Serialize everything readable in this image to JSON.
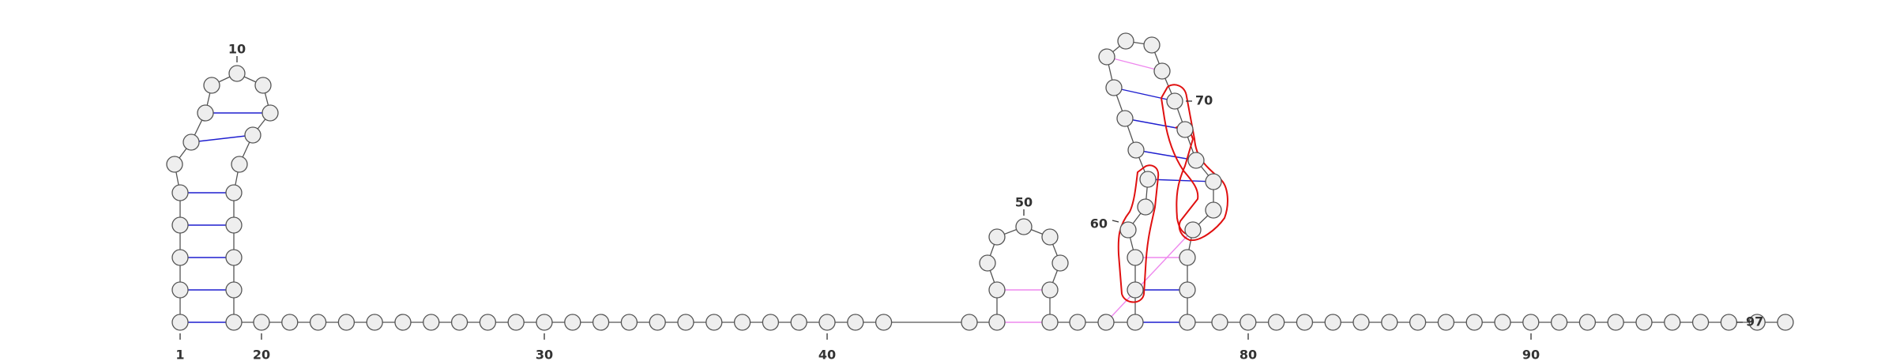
{
  "diagram": {
    "type": "RNA secondary structure",
    "nucleotide_count": 97,
    "position_labels": [
      "1",
      "10",
      "20",
      "30",
      "40",
      "50",
      "60",
      "70",
      "80",
      "90",
      "97"
    ],
    "colors": {
      "backbone": "#555555",
      "nucleotide_fill": "#eeeeee",
      "nucleotide_stroke": "#555555",
      "canonical_pair": "#1f1fcf",
      "noncanonical_pair": "#ee88ee",
      "highlight_outline": "#e01010",
      "label": "#333333"
    }
  }
}
